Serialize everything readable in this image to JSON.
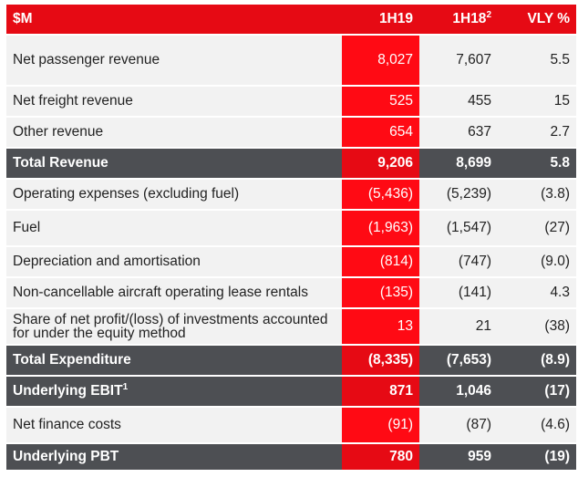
{
  "header": {
    "label": "$M",
    "col_1h19": "1H19",
    "col_1h18": "1H18",
    "col_1h18_sup": "2",
    "col_vly": "VLY %"
  },
  "rows": [
    {
      "label": "Net passenger revenue",
      "h19": "8,027",
      "h18": "7,607",
      "vly": "5.5",
      "total": false
    },
    {
      "label": "Net freight revenue",
      "h19": "525",
      "h18": "455",
      "vly": "15",
      "total": false
    },
    {
      "label": "Other revenue",
      "h19": "654",
      "h18": "637",
      "vly": "2.7",
      "total": false
    },
    {
      "label": "Total Revenue",
      "h19": "9,206",
      "h18": "8,699",
      "vly": "5.8",
      "total": true
    },
    {
      "label": "Operating expenses (excluding fuel)",
      "h19": "(5,436)",
      "h18": "(5,239)",
      "vly": "(3.8)",
      "total": false
    },
    {
      "label": "Fuel",
      "h19": "(1,963)",
      "h18": "(1,547)",
      "vly": "(27)",
      "total": false
    },
    {
      "label": "Depreciation and amortisation",
      "h19": "(814)",
      "h18": "(747)",
      "vly": "(9.0)",
      "total": false
    },
    {
      "label": "Non-cancellable aircraft operating lease rentals",
      "h19": "(135)",
      "h18": "(141)",
      "vly": "4.3",
      "total": false
    },
    {
      "label": "Share of net profit/(loss) of investments accounted for under the equity method",
      "h19": "13",
      "h18": "21",
      "vly": "(38)",
      "total": false
    },
    {
      "label": "Total Expenditure",
      "h19": "(8,335)",
      "h18": "(7,653)",
      "vly": "(8.9)",
      "total": true
    },
    {
      "label": "Underlying EBIT",
      "label_sup": "1",
      "h19": "871",
      "h18": "1,046",
      "vly": "(17)",
      "total": true
    },
    {
      "label": "Net finance costs",
      "h19": "(91)",
      "h18": "(87)",
      "vly": "(4.6)",
      "total": false
    },
    {
      "label": "Underlying PBT",
      "h19": "780",
      "h18": "959",
      "vly": "(19)",
      "total": true
    }
  ],
  "colors": {
    "header_red": "#e60a14",
    "highlight_red": "#ff0a14",
    "total_gray": "#4d4f53",
    "row_gray": "#f2f2f2"
  }
}
